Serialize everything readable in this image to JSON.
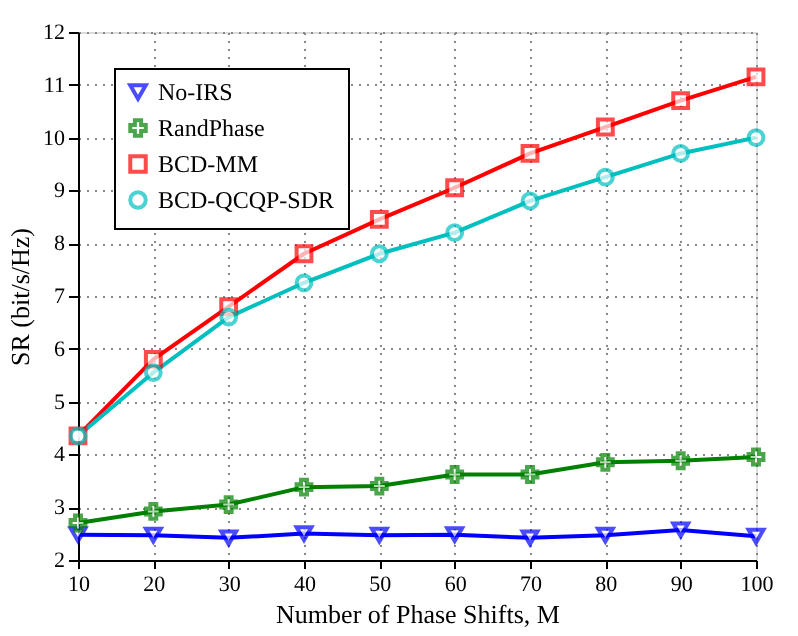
{
  "chart_data": {
    "type": "line",
    "xlabel": "Number of Phase Shifts, M",
    "ylabel": "SR (bit/s/Hz)",
    "x": [
      10,
      20,
      30,
      40,
      50,
      60,
      70,
      80,
      90,
      100
    ],
    "xlim": [
      10,
      100
    ],
    "xticks": [
      10,
      20,
      30,
      40,
      50,
      60,
      70,
      80,
      90,
      100
    ],
    "ylim": [
      2,
      12
    ],
    "yticks": [
      2,
      3,
      4,
      5,
      6,
      7,
      8,
      9,
      10,
      11,
      12
    ],
    "grid": true,
    "legend": "top left",
    "line_style": "solid",
    "series": [
      {
        "name": "No-IRS",
        "color": "#0000ff",
        "marker": "triangle",
        "values": [
          2.48,
          2.47,
          2.42,
          2.5,
          2.47,
          2.48,
          2.42,
          2.47,
          2.57,
          2.45
        ]
      },
      {
        "name": "RandPhase",
        "color": "#008000",
        "marker": "cross",
        "values": [
          2.7,
          2.92,
          3.05,
          3.38,
          3.4,
          3.62,
          3.62,
          3.85,
          3.88,
          3.95
        ]
      },
      {
        "name": "BCD-MM",
        "color": "#ff0000",
        "marker": "square",
        "values": [
          4.35,
          5.8,
          6.8,
          7.8,
          8.45,
          9.05,
          9.7,
          10.2,
          10.7,
          11.15
        ]
      },
      {
        "name": "BCD-QCQP-SDR",
        "color": "#00bfbf",
        "marker": "circle",
        "values": [
          4.35,
          5.55,
          6.6,
          7.25,
          7.8,
          8.2,
          8.8,
          9.25,
          9.7,
          10.0
        ]
      }
    ]
  }
}
